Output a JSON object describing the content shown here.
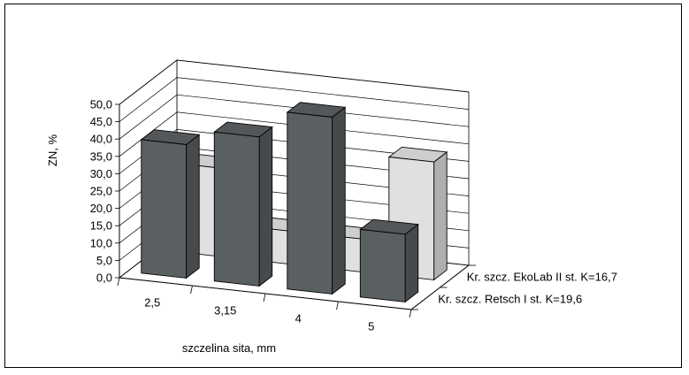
{
  "chart_data": {
    "type": "bar",
    "title": "",
    "xlabel": "szczelina sita, mm",
    "ylabel": "ZN, %",
    "ylim": [
      0,
      50
    ],
    "yticks": [
      "0,0",
      "5,0",
      "10,0",
      "15,0",
      "20,0",
      "25,0",
      "30,0",
      "35,0",
      "40,0",
      "45,0",
      "50,0"
    ],
    "categories": [
      "2,5",
      "3,15",
      "4",
      "5"
    ],
    "series": [
      {
        "name": "Kr. szcz. EkoLab II st. K=16,7",
        "values": [
          25.5,
          9.5,
          9.5,
          34.0
        ],
        "color": "#e0e0e0"
      },
      {
        "name": "Kr. szcz. Retsch I st. K=19,6",
        "values": [
          38.5,
          43.0,
          51.0,
          19.5
        ],
        "color": "#5a5f62"
      }
    ],
    "grid": true,
    "legend_position": "right"
  }
}
